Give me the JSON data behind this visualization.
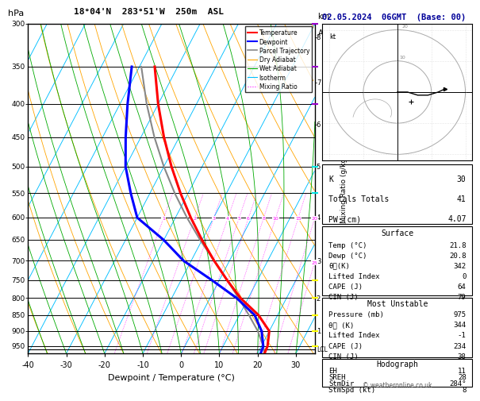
{
  "title": "18°04'N  283°51'W  250m  ASL",
  "date_title": "02.05.2024  06GMT  (Base: 00)",
  "xlabel": "Dewpoint / Temperature (°C)",
  "pressure_levels": [
    300,
    350,
    400,
    450,
    500,
    550,
    600,
    650,
    700,
    750,
    800,
    850,
    900,
    950
  ],
  "temp_min": -40,
  "temp_max": 35,
  "pmin": 300,
  "pmax": 975,
  "skew_scale": 45.0,
  "isotherm_color": "#00bfff",
  "dry_adiabat_color": "#ffa500",
  "wet_adiabat_color": "#00aa00",
  "mixing_ratio_color": "#ff00ff",
  "mixing_ratio_values": [
    1,
    2,
    3,
    4,
    5,
    6,
    8,
    10,
    15,
    20,
    25
  ],
  "temp_profile_T": [
    21.8,
    21.6,
    20.0,
    15.0,
    8.0,
    2.0,
    -4.0,
    -10.0,
    -16.0,
    -22.0,
    -28.0,
    -34.0,
    -40.0,
    -46.0
  ],
  "temp_profile_P": [
    975,
    950,
    900,
    850,
    800,
    750,
    700,
    650,
    600,
    550,
    500,
    450,
    400,
    350
  ],
  "dewp_profile_T": [
    20.8,
    20.5,
    18.0,
    14.0,
    7.0,
    -2.0,
    -12.0,
    -20.0,
    -30.0,
    -35.0,
    -40.0,
    -44.0,
    -48.0,
    -52.0
  ],
  "dewp_profile_P": [
    975,
    950,
    900,
    850,
    800,
    750,
    700,
    650,
    600,
    550,
    500,
    450,
    400,
    350
  ],
  "parcel_T": [
    21.8,
    20.5,
    17.0,
    12.5,
    7.5,
    2.0,
    -4.0,
    -10.5,
    -17.0,
    -23.5,
    -30.0,
    -36.5,
    -43.0,
    -49.5
  ],
  "parcel_P": [
    975,
    950,
    900,
    850,
    800,
    750,
    700,
    650,
    600,
    550,
    500,
    450,
    400,
    350
  ],
  "temp_color": "#ff0000",
  "dewp_color": "#0000ff",
  "parcel_color": "#888888",
  "lcl_pressure": 960,
  "km_ticks": [
    1,
    2,
    3,
    4,
    5,
    6,
    7,
    8
  ],
  "km_pressures": [
    900,
    800,
    700,
    600,
    500,
    430,
    370,
    315
  ],
  "surface_data": {
    "Temp (°C)": "21.8",
    "Dewp (°C)": "20.8",
    "θe(K)": "342",
    "Lifted Index": "0",
    "CAPE (J)": "64",
    "CIN (J)": "79"
  },
  "unstable_data": {
    "Pressure (mb)": "975",
    "θe (K)": "344",
    "Lifted Index": "-1",
    "CAPE (J)": "234",
    "CIN (J)": "38"
  },
  "indices": {
    "K": "30",
    "Totals Totals": "41",
    "PW (cm)": "4.07"
  },
  "hodo_data": {
    "EH": "11",
    "SREH": "28",
    "StmDir": "284°",
    "StmSpd (kt)": "8"
  },
  "hodo_u": [
    0,
    3,
    6,
    9,
    12,
    14
  ],
  "hodo_v": [
    0,
    0,
    -1,
    -1,
    0,
    1
  ],
  "wind_markers": {
    "purple": [
      300,
      350,
      400
    ],
    "cyan": [
      500,
      550
    ],
    "yellow": [
      750,
      800,
      850,
      900,
      950
    ]
  }
}
